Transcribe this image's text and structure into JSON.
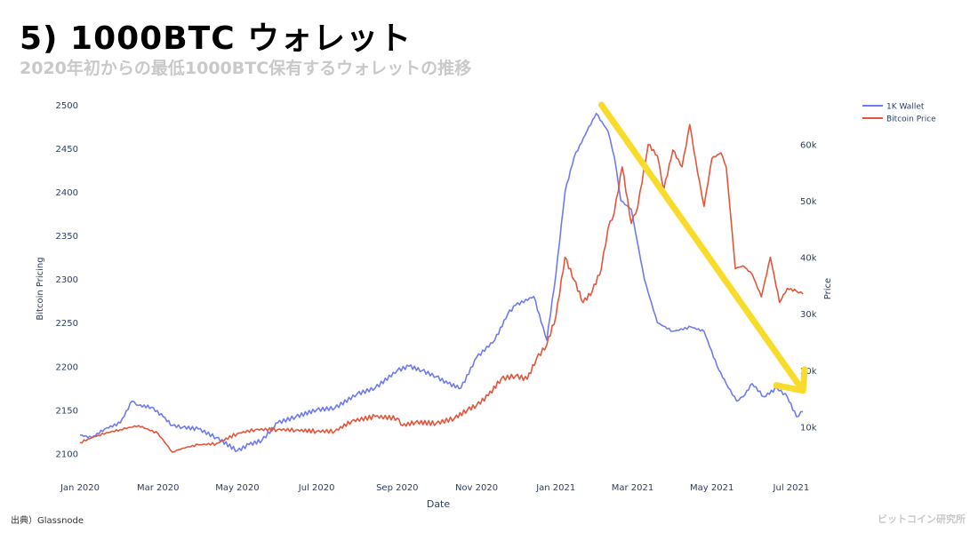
{
  "slide": {
    "title": "5) 1000BTC ウォレット",
    "subtitle": "2020年初からの最低1000BTC保有するウォレットの推移"
  },
  "footer": {
    "source": "出典）Glassnode",
    "credit": "ビットコイン研究所"
  },
  "colors": {
    "wallet": "#6f7af0",
    "price": "#e4553c",
    "arrow": "#f9dc2b",
    "axis_text": "#2a3f5f"
  },
  "chart_data": {
    "type": "line",
    "xlabel": "Date",
    "ylabel_left": "Bitcoin Pricing",
    "ylabel_right": "Price",
    "x_ticks": [
      "Jan 2020",
      "Mar 2020",
      "May 2020",
      "Jul 2020",
      "Sep 2020",
      "Nov 2020",
      "Jan 2021",
      "Mar 2021",
      "May 2021",
      "Jul 2021"
    ],
    "x_range": [
      "2020-01-01",
      "2021-07-12"
    ],
    "left_axis": {
      "ticks": [
        "2100",
        "2150",
        "2200",
        "2250",
        "2300",
        "2350",
        "2400",
        "2450",
        "2500"
      ],
      "range": [
        2082,
        2500
      ]
    },
    "right_axis": {
      "ticks": [
        "10k",
        "20k",
        "30k",
        "40k",
        "50k",
        "60k"
      ],
      "range": [
        2500,
        67000
      ]
    },
    "grid": false,
    "legend_position": "top-right",
    "series": [
      {
        "name": "1K Wallet",
        "axis": "left",
        "x": [
          "2020-01-01",
          "2020-01-10",
          "2020-01-20",
          "2020-02-01",
          "2020-02-10",
          "2020-02-15",
          "2020-02-25",
          "2020-03-05",
          "2020-03-12",
          "2020-03-20",
          "2020-04-01",
          "2020-04-15",
          "2020-05-01",
          "2020-05-10",
          "2020-05-20",
          "2020-06-01",
          "2020-06-15",
          "2020-07-01",
          "2020-07-15",
          "2020-08-01",
          "2020-08-15",
          "2020-09-01",
          "2020-09-10",
          "2020-09-20",
          "2020-10-01",
          "2020-10-10",
          "2020-10-20",
          "2020-11-01",
          "2020-11-15",
          "2020-11-25",
          "2020-12-01",
          "2020-12-15",
          "2020-12-25",
          "2021-01-01",
          "2021-01-08",
          "2021-01-15",
          "2021-01-25",
          "2021-02-01",
          "2021-02-10",
          "2021-02-15",
          "2021-02-20",
          "2021-02-28",
          "2021-03-10",
          "2021-03-20",
          "2021-04-01",
          "2021-04-15",
          "2021-04-25",
          "2021-05-05",
          "2021-05-12",
          "2021-05-20",
          "2021-05-25",
          "2021-06-01",
          "2021-06-10",
          "2021-06-20",
          "2021-06-28",
          "2021-07-05",
          "2021-07-10"
        ],
        "values": [
          2121,
          2118,
          2128,
          2135,
          2160,
          2155,
          2153,
          2142,
          2132,
          2130,
          2128,
          2118,
          2103,
          2110,
          2115,
          2135,
          2142,
          2150,
          2152,
          2168,
          2175,
          2195,
          2200,
          2195,
          2188,
          2180,
          2175,
          2210,
          2230,
          2260,
          2270,
          2280,
          2230,
          2305,
          2400,
          2440,
          2470,
          2490,
          2470,
          2440,
          2390,
          2380,
          2300,
          2250,
          2240,
          2245,
          2240,
          2200,
          2180,
          2160,
          2165,
          2180,
          2165,
          2175,
          2165,
          2142,
          2148
        ]
      },
      {
        "name": "Bitcoin Price",
        "axis": "right",
        "x": [
          "2020-01-01",
          "2020-01-15",
          "2020-02-01",
          "2020-02-15",
          "2020-03-01",
          "2020-03-12",
          "2020-03-20",
          "2020-04-01",
          "2020-04-15",
          "2020-05-01",
          "2020-05-15",
          "2020-06-01",
          "2020-06-15",
          "2020-07-01",
          "2020-07-15",
          "2020-07-28",
          "2020-08-15",
          "2020-09-01",
          "2020-09-05",
          "2020-09-15",
          "2020-10-01",
          "2020-10-15",
          "2020-10-25",
          "2020-11-01",
          "2020-11-10",
          "2020-11-20",
          "2020-12-01",
          "2020-12-10",
          "2020-12-17",
          "2020-12-25",
          "2021-01-01",
          "2021-01-08",
          "2021-01-15",
          "2021-01-22",
          "2021-01-29",
          "2021-02-05",
          "2021-02-10",
          "2021-02-15",
          "2021-02-21",
          "2021-02-28",
          "2021-03-05",
          "2021-03-13",
          "2021-03-20",
          "2021-03-25",
          "2021-04-01",
          "2021-04-08",
          "2021-04-14",
          "2021-04-20",
          "2021-04-25",
          "2021-05-01",
          "2021-05-08",
          "2021-05-12",
          "2021-05-16",
          "2021-05-19",
          "2021-05-25",
          "2021-06-01",
          "2021-06-08",
          "2021-06-15",
          "2021-06-22",
          "2021-06-28",
          "2021-07-05",
          "2021-07-10"
        ],
        "values": [
          7200,
          8500,
          9500,
          10200,
          8800,
          5500,
          6200,
          6800,
          7000,
          8800,
          9500,
          9500,
          9400,
          9200,
          9200,
          11000,
          11800,
          11500,
          10200,
          10800,
          10600,
          11500,
          13000,
          13800,
          15500,
          18500,
          19000,
          18400,
          22000,
          24500,
          29500,
          40000,
          36000,
          32000,
          34000,
          38000,
          45000,
          48000,
          56000,
          46000,
          49000,
          60000,
          58000,
          52000,
          59000,
          56000,
          63500,
          55000,
          49000,
          57500,
          58500,
          56000,
          46000,
          38000,
          38500,
          37000,
          33000,
          40000,
          32000,
          34500,
          34000,
          33500
        ]
      }
    ]
  }
}
